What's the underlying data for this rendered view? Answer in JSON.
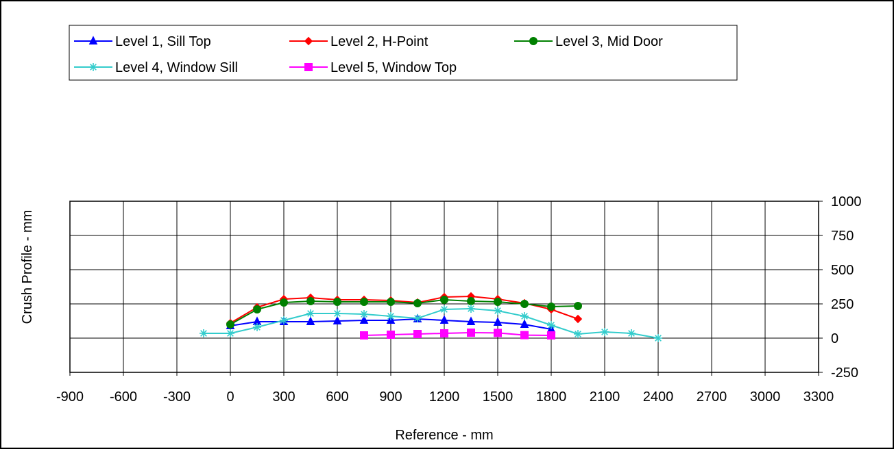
{
  "chart_data": {
    "type": "line",
    "title": "",
    "xlabel": "Reference - mm",
    "ylabel": "Crush Profile - mm",
    "xlim": [
      -900,
      3300
    ],
    "ylim": [
      -250,
      1000
    ],
    "x_ticks": [
      -900,
      -600,
      -300,
      0,
      300,
      600,
      900,
      1200,
      1500,
      1800,
      2100,
      2400,
      2700,
      3000,
      3300
    ],
    "y_ticks": [
      -250,
      0,
      250,
      500,
      750,
      1000
    ],
    "y_axis_side": "right",
    "grid": true,
    "legend_position": "top",
    "series": [
      {
        "name": "Level 1, Sill Top",
        "color": "#0000ff",
        "marker": "triangle",
        "x": [
          0,
          150,
          300,
          450,
          600,
          750,
          900,
          1050,
          1200,
          1350,
          1500,
          1650,
          1800
        ],
        "y": [
          90,
          120,
          120,
          120,
          125,
          130,
          130,
          140,
          130,
          120,
          115,
          100,
          65
        ]
      },
      {
        "name": "Level 2, H-Point",
        "color": "#ff0000",
        "marker": "diamond",
        "x": [
          0,
          150,
          300,
          450,
          600,
          750,
          900,
          1050,
          1200,
          1350,
          1500,
          1650,
          1800,
          1950
        ],
        "y": [
          110,
          225,
          285,
          295,
          280,
          280,
          275,
          260,
          300,
          305,
          285,
          255,
          210,
          140
        ]
      },
      {
        "name": "Level 3, Mid Door",
        "color": "#008000",
        "marker": "circle",
        "x": [
          0,
          150,
          300,
          450,
          600,
          750,
          900,
          1050,
          1200,
          1350,
          1500,
          1650,
          1800,
          1950
        ],
        "y": [
          100,
          210,
          260,
          270,
          265,
          265,
          265,
          255,
          280,
          270,
          265,
          250,
          230,
          235
        ]
      },
      {
        "name": "Level 4, Window Sill",
        "color": "#33cccc",
        "marker": "star",
        "x": [
          -150,
          0,
          150,
          300,
          450,
          600,
          750,
          900,
          1050,
          1200,
          1350,
          1500,
          1650,
          1800,
          1950,
          2100,
          2250,
          2400
        ],
        "y": [
          35,
          35,
          80,
          130,
          180,
          180,
          175,
          160,
          145,
          210,
          215,
          200,
          160,
          95,
          30,
          45,
          35,
          0
        ]
      },
      {
        "name": "Level 5, Window Top",
        "color": "#ff00ff",
        "marker": "square",
        "x": [
          750,
          900,
          1050,
          1200,
          1350,
          1500,
          1650,
          1800
        ],
        "y": [
          20,
          25,
          30,
          35,
          40,
          38,
          22,
          20
        ]
      }
    ]
  }
}
